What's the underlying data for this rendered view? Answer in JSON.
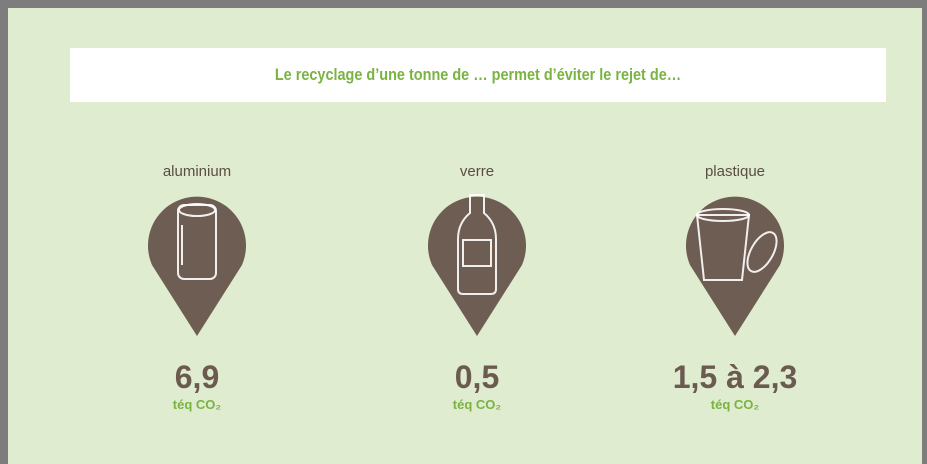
{
  "header": {
    "title": "Le recyclage d’une tonne de … permet d’éviter le rejet de…"
  },
  "items": [
    {
      "label": "aluminium",
      "value": "6,9",
      "unit": "téq CO₂"
    },
    {
      "label": "verre",
      "value": "0,5",
      "unit": "téq CO₂"
    },
    {
      "label": "plastique",
      "value": "1,5 à 2,3",
      "unit": "téq CO₂"
    }
  ]
}
